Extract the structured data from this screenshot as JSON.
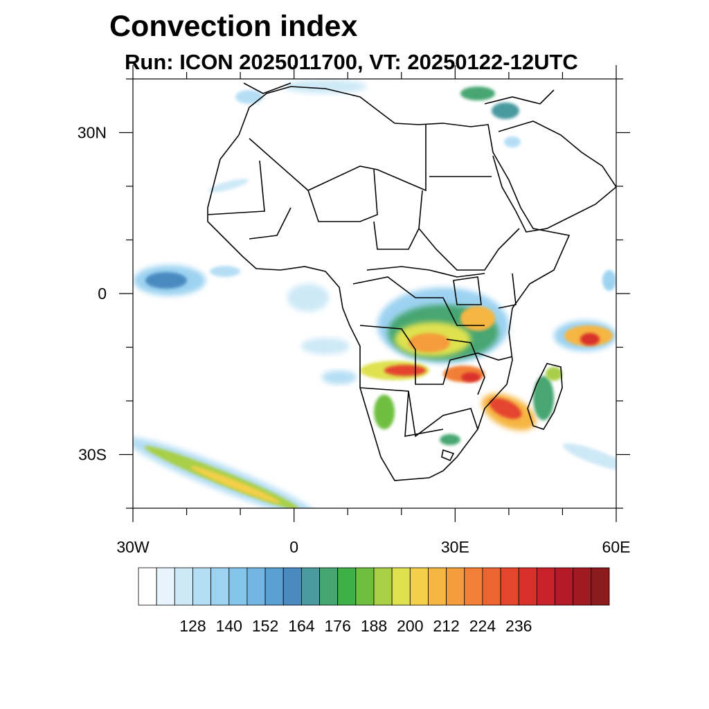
{
  "title": "Convection index",
  "subtitle": "Run: ICON 2025011700,  VT: 20250122-12UTC",
  "map": {
    "lat_ticks": [
      {
        "label": "30N",
        "value": 30
      },
      {
        "label": "0",
        "value": 0
      },
      {
        "label": "30S",
        "value": -30
      }
    ],
    "lon_ticks": [
      {
        "label": "30W",
        "value": -30
      },
      {
        "label": "0",
        "value": 0
      },
      {
        "label": "30E",
        "value": 30
      },
      {
        "label": "60E",
        "value": 60
      }
    ],
    "lon_range": [
      -30,
      60
    ],
    "lat_range": [
      -40,
      40
    ],
    "ocean_color": "#ffffff",
    "border_color": "#000000"
  },
  "colorbar": {
    "labels": [
      "128",
      "140",
      "152",
      "164",
      "176",
      "188",
      "200",
      "212",
      "224",
      "236"
    ],
    "colors": [
      "#ffffff",
      "#e8f4fb",
      "#cde9f7",
      "#b5def4",
      "#9dd3f1",
      "#86c5eb",
      "#74b6e3",
      "#5a9fd3",
      "#4a8ac1",
      "#4a9aa0",
      "#46a672",
      "#3fb046",
      "#6ebf3f",
      "#a8cf46",
      "#dfe14f",
      "#f4cf4a",
      "#f6b642",
      "#f59c3b",
      "#f27f36",
      "#ec6431",
      "#e5452d",
      "#d9302b",
      "#c9212a",
      "#b51b27",
      "#a11a22",
      "#8b1b1c"
    ]
  }
}
